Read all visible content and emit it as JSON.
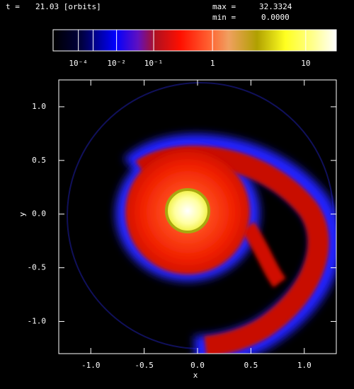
{
  "chart_data": {
    "type": "image",
    "time_label": "t =",
    "time": "21.03 [orbits]",
    "max_label": "max =",
    "max": 32.3324,
    "min_label": "min =",
    "min": {
      "value": 0,
      "label": "0.0000"
    },
    "xlabel": "x",
    "ylabel": "y",
    "xlim": [
      -1.3,
      1.3
    ],
    "ylim": [
      -1.3,
      1.25
    ],
    "xticks": [
      {
        "value": -1,
        "label": "-1.0"
      },
      -0.5,
      {
        "value": 0,
        "label": "0.0"
      },
      0.5,
      {
        "value": 1,
        "label": "1.0"
      }
    ],
    "yticks": [
      {
        "value": -1,
        "label": "-1.0"
      },
      -0.5,
      {
        "value": 0,
        "label": "0.0"
      },
      0.5,
      {
        "value": 1,
        "label": "1.0"
      }
    ],
    "colorbar": {
      "clim": [
        0,
        17.7
      ],
      "power": 0.2,
      "ticks": [
        {
          "value": 0.0001,
          "label": "10⁻⁴"
        },
        {
          "value": 0.001,
          "label": null
        },
        {
          "value": 0.01,
          "label": "10⁻²"
        },
        {
          "value": 0.1,
          "label": "10⁻¹"
        },
        1,
        10
      ]
    }
  }
}
